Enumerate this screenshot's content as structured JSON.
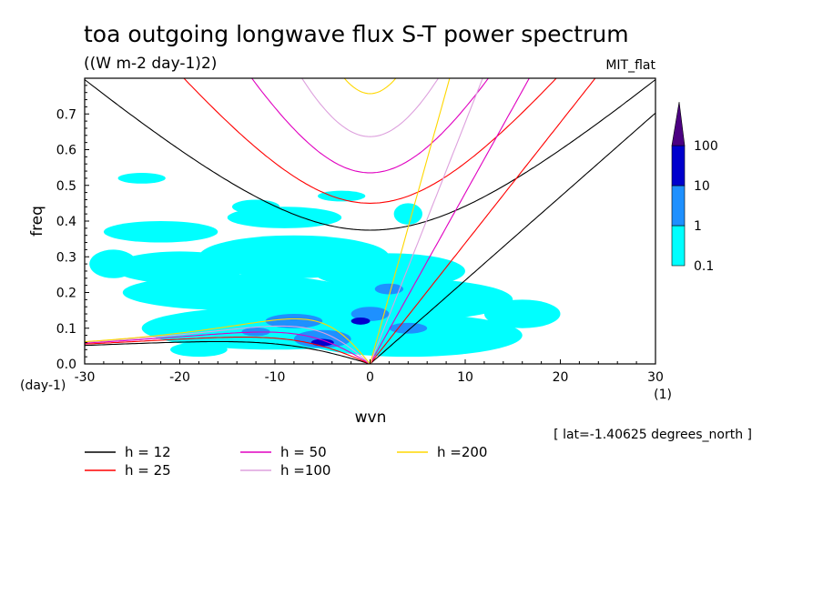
{
  "chart_data": {
    "type": "heatmap",
    "title": "toa outgoing longwave flux S-T power spectrum",
    "subtitle": "((W m-2 day-1)2)",
    "model_tag": "MIT_flat",
    "xlabel": "wvn",
    "ylabel": "freq",
    "x_unit": "(1)",
    "y_unit": "(day-1)",
    "xlim": [
      -30,
      30
    ],
    "ylim": [
      0,
      0.8
    ],
    "x_ticks": [
      "-30",
      "-20",
      "-10",
      "0",
      "10",
      "20",
      "30"
    ],
    "y_ticks": [
      "0.0",
      "0.1",
      "0.2",
      "0.3",
      "0.4",
      "0.5",
      "0.6",
      "0.7"
    ],
    "x_tick_values": [
      -30,
      -20,
      -10,
      0,
      10,
      20,
      30
    ],
    "y_tick_values": [
      0,
      0.1,
      0.2,
      0.3,
      0.4,
      0.5,
      0.6,
      0.7
    ],
    "colorbar": {
      "levels": [
        "0.1",
        "1",
        "10",
        "100"
      ],
      "colors": [
        "#00ffff",
        "#1e90ff",
        "#0000cd",
        "#4b0082"
      ]
    },
    "blobs": [
      {
        "x": -20,
        "y": 0.27,
        "rx": 7,
        "ry": 0.045,
        "level": 0
      },
      {
        "x": -8,
        "y": 0.3,
        "rx": 10,
        "ry": 0.06,
        "level": 0
      },
      {
        "x": 2,
        "y": 0.26,
        "rx": 8,
        "ry": 0.05,
        "level": 0
      },
      {
        "x": -14,
        "y": 0.2,
        "rx": 12,
        "ry": 0.05,
        "level": 0
      },
      {
        "x": 3,
        "y": 0.18,
        "rx": 12,
        "ry": 0.06,
        "level": 0
      },
      {
        "x": -10,
        "y": 0.1,
        "rx": 14,
        "ry": 0.06,
        "level": 0
      },
      {
        "x": 4,
        "y": 0.08,
        "rx": 12,
        "ry": 0.06,
        "level": 0
      },
      {
        "x": -22,
        "y": 0.37,
        "rx": 6,
        "ry": 0.03,
        "level": 0
      },
      {
        "x": -9,
        "y": 0.41,
        "rx": 6,
        "ry": 0.03,
        "level": 0
      },
      {
        "x": -24,
        "y": 0.52,
        "rx": 2.5,
        "ry": 0.015,
        "level": 0
      },
      {
        "x": -3,
        "y": 0.47,
        "rx": 2.5,
        "ry": 0.015,
        "level": 0
      },
      {
        "x": 4,
        "y": 0.42,
        "rx": 1.5,
        "ry": 0.03,
        "level": 0
      },
      {
        "x": -12,
        "y": 0.44,
        "rx": 2.5,
        "ry": 0.02,
        "level": 0
      },
      {
        "x": 16,
        "y": 0.14,
        "rx": 4,
        "ry": 0.04,
        "level": 0
      },
      {
        "x": -27,
        "y": 0.28,
        "rx": 2.5,
        "ry": 0.04,
        "level": 0
      },
      {
        "x": -18,
        "y": 0.04,
        "rx": 3,
        "ry": 0.02,
        "level": 0
      },
      {
        "x": -8,
        "y": 0.12,
        "rx": 3,
        "ry": 0.02,
        "level": 1
      },
      {
        "x": -5,
        "y": 0.07,
        "rx": 3,
        "ry": 0.025,
        "level": 1
      },
      {
        "x": 0,
        "y": 0.14,
        "rx": 2,
        "ry": 0.02,
        "level": 1
      },
      {
        "x": 2,
        "y": 0.21,
        "rx": 1.5,
        "ry": 0.015,
        "level": 1
      },
      {
        "x": 4,
        "y": 0.1,
        "rx": 2,
        "ry": 0.015,
        "level": 1
      },
      {
        "x": -12,
        "y": 0.09,
        "rx": 1.5,
        "ry": 0.012,
        "level": 1
      },
      {
        "x": -5,
        "y": 0.06,
        "rx": 1.2,
        "ry": 0.01,
        "level": 2
      },
      {
        "x": -1,
        "y": 0.12,
        "rx": 1,
        "ry": 0.01,
        "level": 2
      }
    ],
    "dispersion_legend": {
      "columns": [
        [
          {
            "label": "h = 12",
            "color": "#000000"
          },
          {
            "label": "h = 25",
            "color": "#ff0000"
          }
        ],
        [
          {
            "label": "h = 50",
            "color": "#e000c0"
          },
          {
            "label": "h =100",
            "color": "#dda0dd"
          }
        ],
        [
          {
            "label": "h =200",
            "color": "#ffd700"
          }
        ]
      ]
    },
    "annotation": "[ lat=-1.40625 degrees_north ]"
  }
}
